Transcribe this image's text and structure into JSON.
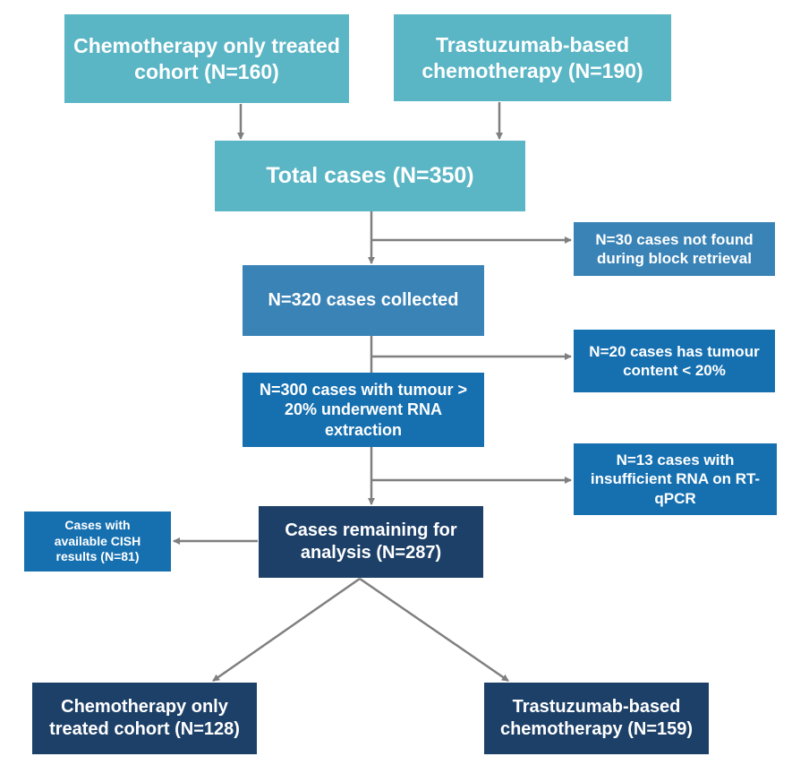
{
  "boxes": {
    "chemo_cohort": "Chemotherapy only treated cohort  (N=160)",
    "trastuzumab_cohort": "Trastuzumab-based chemotherapy (N=190)",
    "total": "Total cases (N=350)",
    "not_found": "N=30 cases not found during block retrieval",
    "collected": "N=320 cases collected",
    "low_tumour": "N=20 cases has tumour content < 20%",
    "rna_extraction": "N=300 cases with tumour > 20% underwent RNA extraction",
    "insufficient_rna": "N=13 cases with insufficient RNA on RT-qPCR",
    "remaining": "Cases remaining for analysis (N=287)",
    "cish": "Cases with available CISH results (N=81)",
    "final_chemo": "Chemotherapy only treated cohort (N=128)",
    "final_trastuzumab": "Trastuzumab-based chemotherapy (N=159)"
  },
  "colors": {
    "teal": "#5ab5c5",
    "mid_blue": "#3a83b6",
    "blue": "#1670b0",
    "navy": "#1d4068",
    "arrow": "#7f7f7f"
  }
}
